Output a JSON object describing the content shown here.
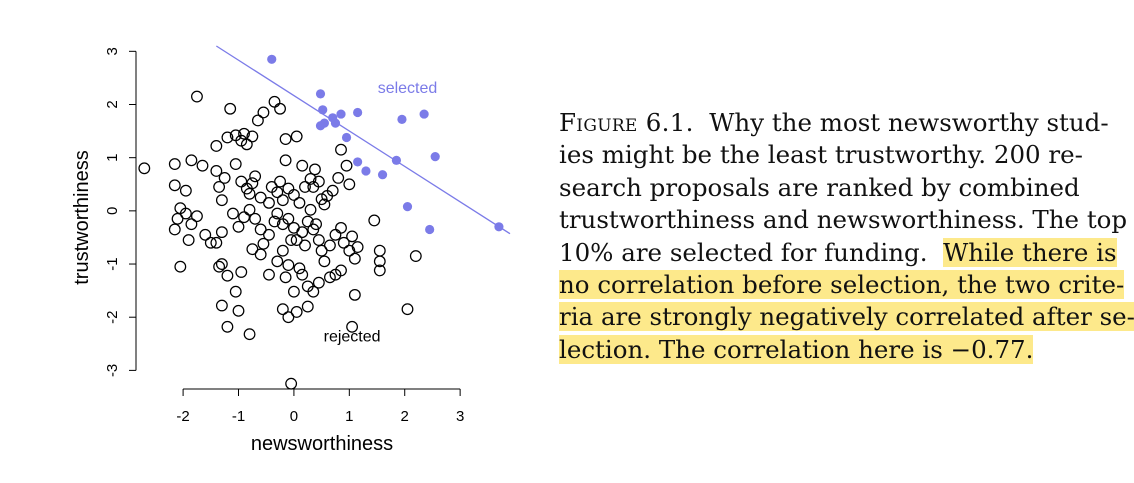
{
  "chart_data": {
    "type": "scatter",
    "xlabel": "newsworthiness",
    "ylabel": "trustworthiness",
    "xlim": [
      -2.85,
      3.9
    ],
    "ylim": [
      -3.35,
      3.1
    ],
    "xticks": [
      "-2",
      "-1",
      "0",
      "1",
      "2",
      "3"
    ],
    "yticks": [
      "-3",
      "-2",
      "-1",
      "0",
      "1",
      "2",
      "3"
    ],
    "annotations": [
      {
        "text": "selected",
        "x": 2.05,
        "y": 2.22
      },
      {
        "text": "rejected",
        "x": 1.05,
        "y": -2.46
      }
    ],
    "line": {
      "x": [
        -1.4,
        3.9
      ],
      "y": [
        3.1,
        -0.43
      ]
    },
    "colors": {
      "selected": "#7b7be8",
      "rejected": "#000000"
    },
    "series": [
      {
        "name": "selected",
        "points": [
          [
            -0.4,
            2.85
          ],
          [
            0.48,
            2.2
          ],
          [
            0.52,
            1.9
          ],
          [
            0.7,
            1.75
          ],
          [
            0.75,
            1.65
          ],
          [
            0.55,
            1.65
          ],
          [
            0.48,
            1.6
          ],
          [
            0.85,
            1.82
          ],
          [
            1.15,
            1.85
          ],
          [
            0.95,
            1.38
          ],
          [
            2.35,
            1.82
          ],
          [
            1.95,
            1.72
          ],
          [
            1.15,
            0.92
          ],
          [
            1.3,
            0.75
          ],
          [
            1.6,
            0.68
          ],
          [
            1.85,
            0.95
          ],
          [
            2.55,
            1.02
          ],
          [
            2.05,
            0.08
          ],
          [
            2.45,
            -0.35
          ],
          [
            3.7,
            -0.3
          ]
        ]
      },
      {
        "name": "rejected",
        "points": [
          [
            -2.7,
            0.8
          ],
          [
            -2.15,
            0.88
          ],
          [
            -2.15,
            0.48
          ],
          [
            -1.95,
            0.38
          ],
          [
            -1.85,
            0.95
          ],
          [
            -1.75,
            2.15
          ],
          [
            -1.65,
            0.85
          ],
          [
            -2.1,
            -0.15
          ],
          [
            -2.05,
            0.05
          ],
          [
            -1.95,
            -0.05
          ],
          [
            -1.85,
            -0.25
          ],
          [
            -1.75,
            -0.1
          ],
          [
            -1.6,
            -0.45
          ],
          [
            -1.5,
            -0.6
          ],
          [
            -1.9,
            -0.55
          ],
          [
            -2.15,
            -0.35
          ],
          [
            -2.05,
            -1.05
          ],
          [
            -1.4,
            0.75
          ],
          [
            -1.35,
            0.45
          ],
          [
            -1.3,
            0.2
          ],
          [
            -1.25,
            0.62
          ],
          [
            -1.4,
            1.22
          ],
          [
            -1.2,
            1.38
          ],
          [
            -1.15,
            1.92
          ],
          [
            -1.05,
            1.42
          ],
          [
            -0.95,
            1.32
          ],
          [
            -0.9,
            1.45
          ],
          [
            -0.85,
            1.25
          ],
          [
            -0.75,
            1.4
          ],
          [
            -0.65,
            1.7
          ],
          [
            -0.55,
            1.85
          ],
          [
            -0.35,
            2.05
          ],
          [
            -0.25,
            1.92
          ],
          [
            -0.15,
            1.35
          ],
          [
            0.05,
            1.4
          ],
          [
            -1.05,
            0.88
          ],
          [
            -0.95,
            0.55
          ],
          [
            -0.85,
            0.42
          ],
          [
            -0.8,
            0.32
          ],
          [
            -0.75,
            0.52
          ],
          [
            -0.7,
            0.65
          ],
          [
            -0.6,
            0.25
          ],
          [
            -0.45,
            0.15
          ],
          [
            -0.4,
            0.45
          ],
          [
            -0.3,
            0.35
          ],
          [
            -0.25,
            0.55
          ],
          [
            -0.2,
            0.2
          ],
          [
            -0.1,
            0.42
          ],
          [
            0.0,
            0.3
          ],
          [
            0.1,
            0.15
          ],
          [
            0.2,
            0.45
          ],
          [
            0.3,
            0.6
          ],
          [
            0.38,
            0.78
          ],
          [
            0.45,
            0.55
          ],
          [
            0.5,
            0.22
          ],
          [
            0.55,
            0.12
          ],
          [
            0.6,
            0.28
          ],
          [
            0.7,
            0.38
          ],
          [
            0.8,
            0.62
          ],
          [
            0.85,
            1.15
          ],
          [
            0.95,
            0.85
          ],
          [
            1.0,
            0.5
          ],
          [
            -1.1,
            -0.05
          ],
          [
            -1.0,
            -0.3
          ],
          [
            -0.9,
            -0.12
          ],
          [
            -0.8,
            0.02
          ],
          [
            -0.7,
            -0.15
          ],
          [
            -0.6,
            -0.35
          ],
          [
            -0.55,
            -0.62
          ],
          [
            -0.45,
            -0.45
          ],
          [
            -0.35,
            -0.2
          ],
          [
            -0.3,
            -0.05
          ],
          [
            -0.2,
            -0.25
          ],
          [
            -0.1,
            -0.15
          ],
          [
            0.0,
            -0.32
          ],
          [
            0.05,
            -0.55
          ],
          [
            0.15,
            -0.4
          ],
          [
            0.25,
            -0.2
          ],
          [
            0.3,
            0.02
          ],
          [
            0.35,
            -0.35
          ],
          [
            0.4,
            -0.25
          ],
          [
            0.45,
            -0.55
          ],
          [
            0.5,
            -0.75
          ],
          [
            0.55,
            -0.95
          ],
          [
            0.65,
            -0.65
          ],
          [
            0.75,
            -0.45
          ],
          [
            0.85,
            -0.32
          ],
          [
            0.9,
            -0.6
          ],
          [
            1.0,
            -0.75
          ],
          [
            1.05,
            -0.48
          ],
          [
            1.1,
            -0.9
          ],
          [
            1.15,
            -0.68
          ],
          [
            1.45,
            -0.18
          ],
          [
            1.55,
            -0.75
          ],
          [
            1.55,
            -0.95
          ],
          [
            1.55,
            -1.12
          ],
          [
            2.2,
            -0.85
          ],
          [
            -1.3,
            -0.4
          ],
          [
            -1.4,
            -0.6
          ],
          [
            -1.35,
            -1.05
          ],
          [
            -1.3,
            -1.0
          ],
          [
            -1.2,
            -1.22
          ],
          [
            -0.95,
            -1.15
          ],
          [
            -0.75,
            -0.72
          ],
          [
            -0.6,
            -0.82
          ],
          [
            -0.45,
            -1.2
          ],
          [
            -0.3,
            -0.95
          ],
          [
            -0.2,
            -0.75
          ],
          [
            -0.15,
            -1.25
          ],
          [
            -0.1,
            -1.02
          ],
          [
            0.0,
            -1.52
          ],
          [
            0.1,
            -1.08
          ],
          [
            0.15,
            -1.2
          ],
          [
            0.25,
            -1.42
          ],
          [
            0.35,
            -1.52
          ],
          [
            0.45,
            -1.35
          ],
          [
            0.65,
            -1.25
          ],
          [
            0.75,
            -1.2
          ],
          [
            0.85,
            -1.12
          ],
          [
            1.1,
            -1.58
          ],
          [
            -1.05,
            -1.52
          ],
          [
            -1.3,
            -1.78
          ],
          [
            -1.0,
            -1.88
          ],
          [
            -1.2,
            -2.18
          ],
          [
            -0.8,
            -2.32
          ],
          [
            -0.2,
            -1.85
          ],
          [
            -0.1,
            -2.0
          ],
          [
            0.05,
            -1.9
          ],
          [
            0.25,
            -1.8
          ],
          [
            1.05,
            -2.18
          ],
          [
            2.05,
            -1.85
          ],
          [
            -0.05,
            -3.25
          ],
          [
            -0.15,
            0.95
          ],
          [
            0.15,
            0.85
          ],
          [
            0.35,
            0.45
          ],
          [
            -0.05,
            -0.55
          ],
          [
            0.2,
            -0.65
          ]
        ]
      }
    ]
  },
  "caption": {
    "lines": [
      {
        "text": "Why the most newsworthy stud-",
        "label": "Figure 6.1.",
        "hl": false
      },
      {
        "text": "ies might be the least trustworthy.  200 re-",
        "hl": false
      },
      {
        "text": "search proposals are ranked by combined",
        "hl": false
      },
      {
        "text": "trustworthiness and newsworthiness. The top",
        "hl": false
      },
      {
        "text": "10% are selected for funding.",
        "hl_part": "While there is",
        "hl": "partial"
      },
      {
        "text": "no correlation before selection, the two crite-",
        "hl": true
      },
      {
        "text": "ria are strongly negatively correlated after se-",
        "hl": true
      },
      {
        "text": "lection. The correlation here is −0.77.",
        "hl": true
      }
    ]
  }
}
